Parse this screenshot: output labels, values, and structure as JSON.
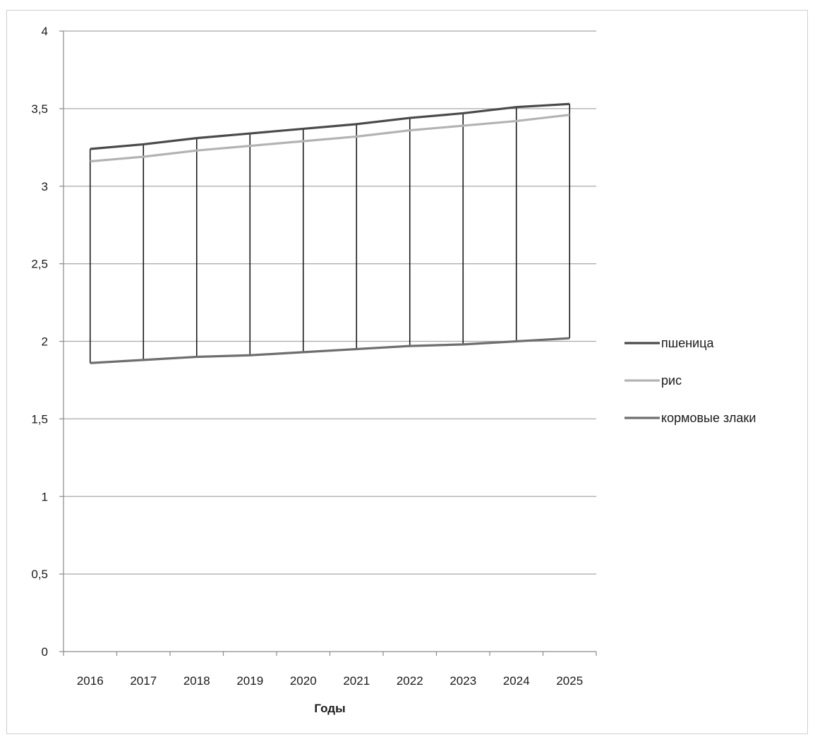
{
  "chart_data": {
    "type": "line",
    "xlabel": "Годы",
    "ylabel": "",
    "categories": [
      "2016",
      "2017",
      "2018",
      "2019",
      "2020",
      "2021",
      "2022",
      "2023",
      "2024",
      "2025"
    ],
    "ylim": [
      0,
      4
    ],
    "y_ticks": [
      "0",
      "0,5",
      "1",
      "1,5",
      "2",
      "2,5",
      "3",
      "3,5",
      "4"
    ],
    "y_tick_values": [
      0,
      0.5,
      1,
      1.5,
      2,
      2.5,
      3,
      3.5,
      4
    ],
    "grid": "horizontal",
    "drop_lines": true,
    "legend_position": "right",
    "series": [
      {
        "name": "пшеница",
        "color": "#4a4a4a",
        "values": [
          3.24,
          3.27,
          3.31,
          3.34,
          3.37,
          3.4,
          3.44,
          3.47,
          3.51,
          3.53
        ]
      },
      {
        "name": "рис",
        "color": "#b3b3b3",
        "values": [
          3.16,
          3.19,
          3.23,
          3.26,
          3.29,
          3.32,
          3.36,
          3.39,
          3.42,
          3.46
        ]
      },
      {
        "name": "кормовые злаки",
        "color": "#6e6e6e",
        "values": [
          1.86,
          1.88,
          1.9,
          1.91,
          1.93,
          1.95,
          1.97,
          1.98,
          2.0,
          2.02
        ]
      }
    ]
  }
}
